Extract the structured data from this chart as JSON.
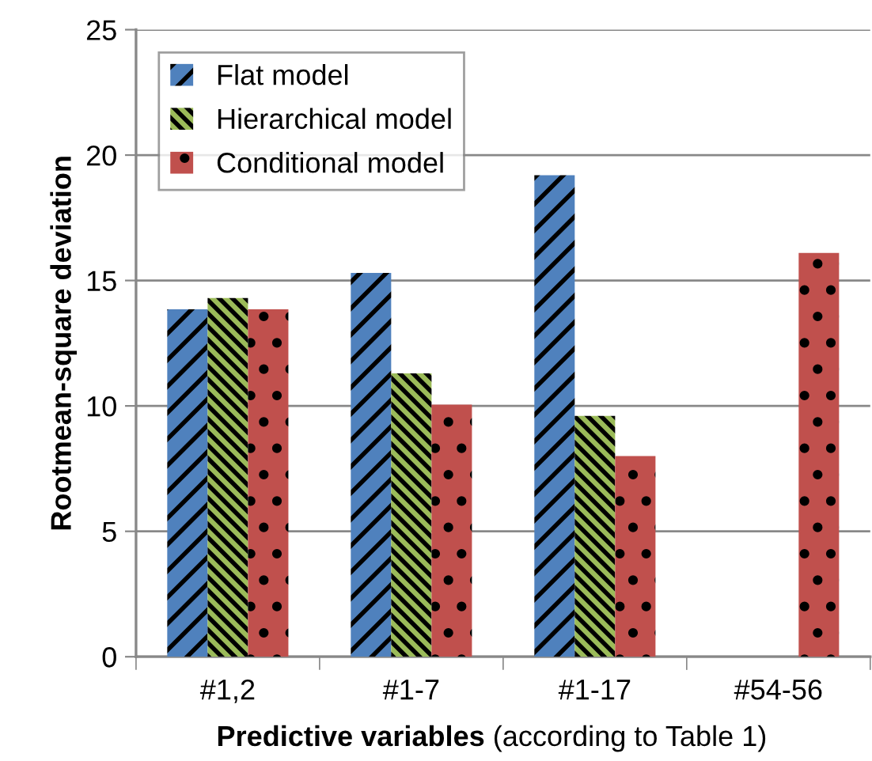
{
  "chart_data": {
    "type": "bar",
    "xlabel": "Predictive variables (according to Table 1)",
    "ylabel": "Rootmean-square deviation",
    "categories": [
      "#1,2",
      "#1-7",
      "#1-17",
      "#54-56"
    ],
    "series": [
      {
        "name": "Flat model",
        "color": "#4f81bd",
        "values": [
          13.85,
          15.3,
          19.2,
          null
        ]
      },
      {
        "name": "Hierarchical model",
        "color": "#9bbb59",
        "values": [
          14.3,
          11.3,
          9.6,
          null
        ]
      },
      {
        "name": "Conditional model",
        "color": "#c0504d",
        "values": [
          13.85,
          10.05,
          8.0,
          16.1
        ]
      }
    ],
    "ylim": [
      0,
      25
    ],
    "yticks": [
      0,
      5,
      10,
      15,
      20,
      25
    ],
    "grid": "y",
    "legend": "top left"
  }
}
